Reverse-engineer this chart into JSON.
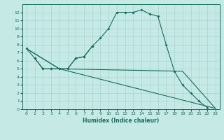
{
  "xlabel": "Humidex (Indice chaleur)",
  "background_color": "#c5eae6",
  "grid_color": "#aad4d0",
  "line_color": "#1a6b60",
  "xlim": [
    -0.5,
    23.5
  ],
  "ylim": [
    0,
    13
  ],
  "xticks": [
    0,
    1,
    2,
    3,
    4,
    5,
    6,
    7,
    8,
    9,
    10,
    11,
    12,
    13,
    14,
    15,
    16,
    17,
    18,
    19,
    20,
    21,
    22,
    23
  ],
  "yticks": [
    0,
    1,
    2,
    3,
    4,
    5,
    6,
    7,
    8,
    9,
    10,
    11,
    12
  ],
  "line1_x": [
    0,
    1,
    2,
    3,
    4,
    5,
    6,
    7,
    8,
    9,
    10,
    11,
    12,
    13,
    14,
    15,
    16,
    17,
    18,
    19,
    20,
    21,
    22
  ],
  "line1_y": [
    7.5,
    6.3,
    5.0,
    5.0,
    5.0,
    5.0,
    6.3,
    6.5,
    7.8,
    8.8,
    10.0,
    12.0,
    12.0,
    12.0,
    12.3,
    11.8,
    11.5,
    8.0,
    4.7,
    3.0,
    2.0,
    1.0,
    0.2
  ],
  "line2_x": [
    1,
    2,
    3,
    4,
    5,
    6,
    7,
    8
  ],
  "line2_y": [
    6.3,
    5.0,
    5.0,
    5.0,
    5.0,
    6.3,
    6.5,
    7.8
  ],
  "line3_x": [
    0,
    4,
    19,
    23
  ],
  "line3_y": [
    7.5,
    5.0,
    4.7,
    0.1
  ],
  "line4_x": [
    0,
    4,
    23
  ],
  "line4_y": [
    7.5,
    5.0,
    0.1
  ]
}
